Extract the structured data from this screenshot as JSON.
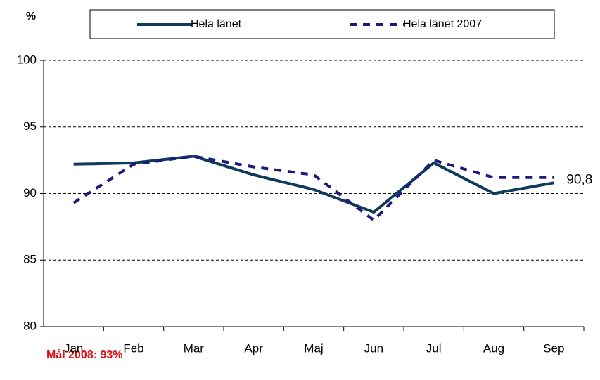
{
  "chart_data": {
    "type": "line",
    "y_label": "%",
    "footnote": "Mål 2008: 93%",
    "categories": [
      "Jan",
      "Feb",
      "Mar",
      "Apr",
      "Maj",
      "Jun",
      "Jul",
      "Aug",
      "Sep"
    ],
    "series": [
      {
        "name": "Hela länet",
        "color": "#0e3b5c",
        "dashed": false,
        "values": [
          92.2,
          92.3,
          92.8,
          91.4,
          90.3,
          88.6,
          92.3,
          90.0,
          90.8
        ],
        "value_labels": [
          null,
          null,
          null,
          null,
          null,
          null,
          null,
          null,
          "90,8"
        ]
      },
      {
        "name": "Hela länet 2007",
        "color": "#1b1b7e",
        "dashed": true,
        "values": [
          89.3,
          92.2,
          92.8,
          92.0,
          91.4,
          88.0,
          92.5,
          91.2,
          91.2
        ]
      }
    ],
    "ylim": [
      80,
      100
    ],
    "yticks": [
      80,
      85,
      90,
      95,
      100
    ],
    "grid": true
  }
}
